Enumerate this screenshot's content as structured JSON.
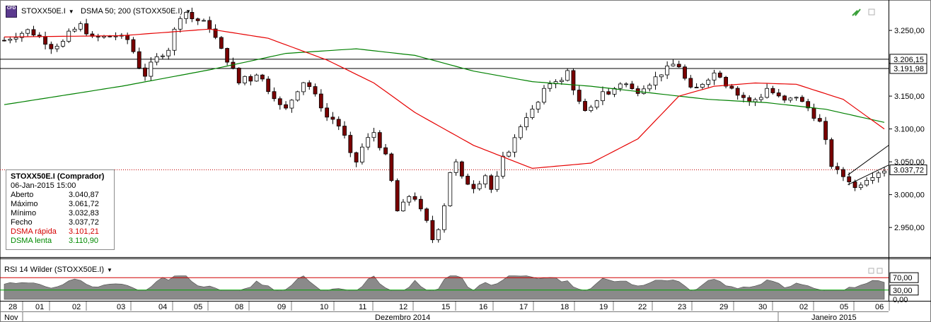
{
  "toolbar": {
    "logo_text": "CFD",
    "symbol": "STOXX50E.I",
    "indicator": "DSMA 50; 200 (STOXX50E.I)"
  },
  "info_box": {
    "title": "STOXX50E.I (Comprador)",
    "date": "06-Jan-2015 15:00",
    "rows": [
      {
        "label": "Aberto",
        "value": "3.040,87",
        "color": "#000000"
      },
      {
        "label": "Máximo",
        "value": "3.061,72",
        "color": "#000000"
      },
      {
        "label": "Mínimo",
        "value": "3.032,83",
        "color": "#000000"
      },
      {
        "label": "Fecho",
        "value": "3.037,72",
        "color": "#000000"
      },
      {
        "label": "DSMA rápida",
        "value": "3.101,21",
        "color": "#d40000"
      },
      {
        "label": "DSMA lenta",
        "value": "3.110,90",
        "color": "#008a00"
      }
    ]
  },
  "rsi": {
    "label": "RSI 14 Wilder (STOXX50E.I)",
    "levels": [
      70,
      30
    ],
    "level_labels": [
      "70,00",
      "30,00",
      "0,00"
    ]
  },
  "price_labels": {
    "line1": "3.206,15",
    "line2": "3.191,98",
    "last": "3.037,72"
  },
  "chart_data": {
    "type": "candlestick",
    "y_ticks": [
      "3.250,00",
      "3.200,00",
      "3.150,00",
      "3.100,00",
      "3.050,00",
      "3.000,00",
      "2.950,00"
    ],
    "y_tick_values": [
      3250,
      3200,
      3150,
      3100,
      3050,
      3000,
      2950
    ],
    "ylim": [
      2905,
      3292
    ],
    "x_ticks": [
      "28",
      "01",
      "02",
      "03",
      "04",
      "05",
      "08",
      "09",
      "10",
      "11",
      "12",
      "15",
      "16",
      "17",
      "18",
      "19",
      "22",
      "23",
      "29",
      "30",
      "02",
      "05",
      "06"
    ],
    "x_months": [
      "Nov",
      "Dezembro 2014",
      "Janeiro 2015"
    ],
    "horizontal_lines": [
      3206.15,
      3191.98
    ],
    "last_price": 3037.72,
    "series_colors": {
      "fast": "#e60000",
      "slow": "#008000",
      "up": "#ffffff",
      "down": "#8b0000"
    },
    "close_path": [
      [
        0,
        3235
      ],
      [
        4,
        3250
      ],
      [
        6,
        3240
      ],
      [
        8,
        3225
      ],
      [
        10,
        3232
      ],
      [
        11,
        3245
      ],
      [
        13,
        3258
      ],
      [
        15,
        3238
      ],
      [
        19,
        3242
      ],
      [
        21,
        3236
      ],
      [
        22,
        3218
      ],
      [
        23,
        3195
      ],
      [
        24,
        3182
      ],
      [
        25,
        3198
      ],
      [
        26,
        3208
      ],
      [
        28,
        3222
      ],
      [
        29,
        3250
      ],
      [
        30,
        3272
      ],
      [
        31,
        3278
      ],
      [
        32,
        3268
      ],
      [
        34,
        3262
      ],
      [
        35,
        3255
      ],
      [
        36,
        3238
      ],
      [
        37,
        3220
      ],
      [
        38,
        3205
      ],
      [
        39,
        3190
      ],
      [
        40,
        3170
      ],
      [
        41,
        3180
      ],
      [
        42,
        3175
      ],
      [
        43,
        3185
      ],
      [
        44,
        3175
      ],
      [
        45,
        3160
      ],
      [
        46,
        3150
      ],
      [
        47,
        3135
      ],
      [
        48,
        3130
      ],
      [
        49,
        3145
      ],
      [
        50,
        3160
      ],
      [
        51,
        3172
      ],
      [
        52,
        3165
      ],
      [
        53,
        3150
      ],
      [
        54,
        3135
      ],
      [
        55,
        3118
      ],
      [
        56,
        3115
      ],
      [
        57,
        3105
      ],
      [
        58,
        3088
      ],
      [
        59,
        3060
      ],
      [
        60,
        3050
      ],
      [
        61,
        3072
      ],
      [
        62,
        3085
      ],
      [
        63,
        3095
      ],
      [
        64,
        3075
      ],
      [
        65,
        3058
      ],
      [
        66,
        3020
      ],
      [
        67,
        2975
      ],
      [
        68,
        2985
      ],
      [
        69,
        2998
      ],
      [
        70,
        2995
      ],
      [
        71,
        2975
      ],
      [
        72,
        2958
      ],
      [
        73,
        2932
      ],
      [
        74,
        2950
      ],
      [
        75,
        2985
      ],
      [
        76,
        3035
      ],
      [
        77,
        3048
      ],
      [
        78,
        3025
      ],
      [
        79,
        3018
      ],
      [
        80,
        3012
      ],
      [
        81,
        3020
      ],
      [
        82,
        3030
      ],
      [
        83,
        3008
      ],
      [
        84,
        3025
      ],
      [
        85,
        3055
      ],
      [
        86,
        3068
      ],
      [
        87,
        3085
      ],
      [
        88,
        3105
      ],
      [
        89,
        3120
      ],
      [
        90,
        3128
      ],
      [
        91,
        3140
      ],
      [
        92,
        3158
      ],
      [
        93,
        3170
      ],
      [
        94,
        3175
      ],
      [
        95,
        3172
      ],
      [
        96,
        3188
      ],
      [
        97,
        3162
      ],
      [
        98,
        3140
      ],
      [
        99,
        3125
      ],
      [
        100,
        3130
      ],
      [
        101,
        3145
      ],
      [
        102,
        3158
      ],
      [
        103,
        3152
      ],
      [
        104,
        3162
      ],
      [
        105,
        3170
      ],
      [
        106,
        3168
      ],
      [
        107,
        3160
      ],
      [
        108,
        3158
      ],
      [
        109,
        3165
      ],
      [
        110,
        3170
      ],
      [
        111,
        3178
      ],
      [
        112,
        3185
      ],
      [
        113,
        3192
      ],
      [
        114,
        3198
      ],
      [
        115,
        3196
      ],
      [
        116,
        3176
      ],
      [
        117,
        3160
      ],
      [
        118,
        3162
      ],
      [
        119,
        3170
      ],
      [
        120,
        3178
      ],
      [
        121,
        3185
      ],
      [
        122,
        3182
      ],
      [
        123,
        3168
      ],
      [
        124,
        3165
      ],
      [
        125,
        3152
      ],
      [
        126,
        3148
      ],
      [
        127,
        3140
      ],
      [
        128,
        3145
      ],
      [
        129,
        3150
      ],
      [
        130,
        3162
      ],
      [
        131,
        3155
      ],
      [
        132,
        3148
      ],
      [
        133,
        3142
      ],
      [
        134,
        3145
      ],
      [
        135,
        3150
      ],
      [
        136,
        3140
      ],
      [
        137,
        3132
      ],
      [
        138,
        3120
      ],
      [
        139,
        3110
      ],
      [
        140,
        3080
      ],
      [
        141,
        3045
      ],
      [
        142,
        3035
      ],
      [
        143,
        3028
      ],
      [
        144,
        3022
      ],
      [
        145,
        3010
      ],
      [
        146,
        3018
      ],
      [
        147,
        3025
      ],
      [
        148,
        3030
      ],
      [
        149,
        3035
      ],
      [
        150,
        3038
      ]
    ],
    "dsma_fast_path": [
      [
        0,
        3240
      ],
      [
        20,
        3242
      ],
      [
        35,
        3252
      ],
      [
        45,
        3238
      ],
      [
        55,
        3205
      ],
      [
        63,
        3170
      ],
      [
        70,
        3125
      ],
      [
        80,
        3075
      ],
      [
        90,
        3040
      ],
      [
        100,
        3048
      ],
      [
        108,
        3085
      ],
      [
        115,
        3150
      ],
      [
        121,
        3165
      ],
      [
        128,
        3170
      ],
      [
        135,
        3168
      ],
      [
        143,
        3145
      ],
      [
        150,
        3100
      ]
    ],
    "dsma_slow_path": [
      [
        0,
        3137
      ],
      [
        20,
        3165
      ],
      [
        35,
        3190
      ],
      [
        48,
        3215
      ],
      [
        60,
        3222
      ],
      [
        70,
        3212
      ],
      [
        80,
        3188
      ],
      [
        90,
        3172
      ],
      [
        100,
        3165
      ],
      [
        110,
        3155
      ],
      [
        120,
        3145
      ],
      [
        130,
        3140
      ],
      [
        140,
        3130
      ],
      [
        150,
        3110
      ]
    ],
    "channel": [
      [
        145,
        3015,
        3060
      ],
      [
        150,
        3045,
        3075
      ]
    ]
  }
}
